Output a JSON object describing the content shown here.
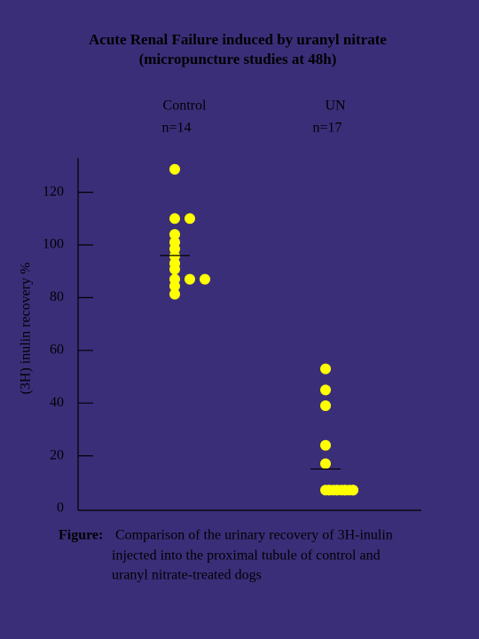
{
  "chart_data": {
    "type": "dot",
    "title": [
      "Acute Renal Failure induced by uranyl nitrate",
      "(micropuncture studies at 48h)"
    ],
    "ylabel": "(3H) inulin recovery %",
    "ylim": [
      0,
      133
    ],
    "yticks": [
      0,
      20,
      40,
      60,
      80,
      100,
      120
    ],
    "color": "#ffff00",
    "groups": [
      {
        "name": "Control",
        "n": "n=14",
        "values": [
          128.7,
          110,
          110,
          104,
          101,
          98.5,
          95.8,
          93,
          90.8,
          87,
          87,
          87,
          84.4,
          81.3
        ],
        "mean": 96
      },
      {
        "name": "UN",
        "n": "n=17",
        "values": [
          53,
          45,
          39,
          24,
          17,
          7,
          7,
          7,
          7,
          7,
          7,
          7,
          7,
          7,
          7,
          7,
          7
        ],
        "mean": 15
      }
    ],
    "caption": {
      "label": "Figure:",
      "lines": [
        "Comparison of the urinary recovery of 3H-inulin",
        "injected into the proximal tubule of control and",
        "uranyl nitrate-treated dogs"
      ]
    }
  }
}
